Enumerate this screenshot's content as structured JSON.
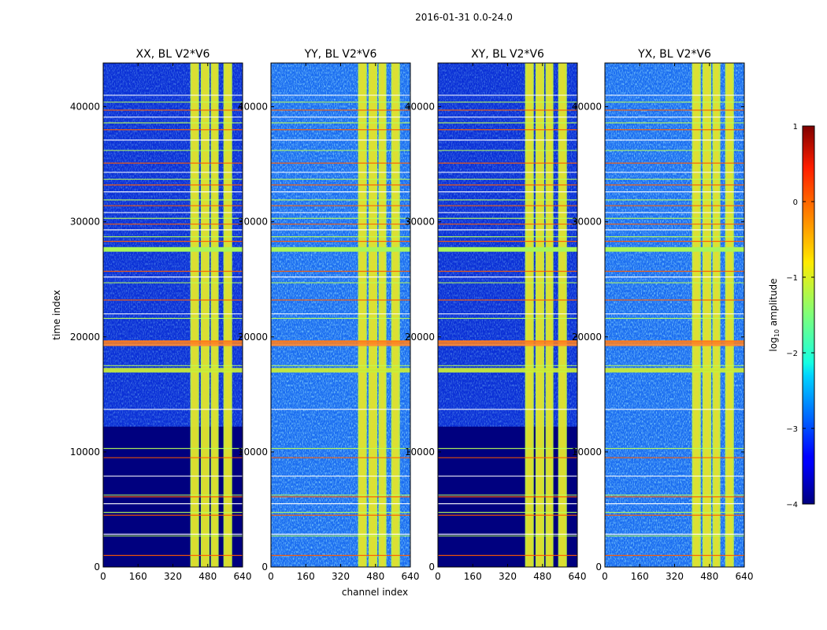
{
  "figure_title": "2016-01-31 0.0-24.0",
  "chart_data": {
    "type": "heatmap",
    "title": "2016-01-31 0.0-24.0",
    "xlabel": "channel index",
    "ylabel": "time index",
    "xlim": [
      0,
      640
    ],
    "ylim": [
      0,
      43800
    ],
    "xticks": [
      0,
      160,
      320,
      480,
      640
    ],
    "yticks": [
      0,
      10000,
      20000,
      30000,
      40000
    ],
    "panels": [
      {
        "title": "XX, BL V2*V6",
        "pol": "XX"
      },
      {
        "title": "YY, BL V2*V6",
        "pol": "YY"
      },
      {
        "title": "XY, BL V2*V6",
        "pol": "XY"
      },
      {
        "title": "YX, BL V2*V6",
        "pol": "YX"
      }
    ],
    "colorbar": {
      "label": "log10 amplitude",
      "label_base": "log",
      "label_sub": "10",
      "label_rest": " amplitude",
      "range": [
        -4,
        1
      ],
      "ticks": [
        1,
        0,
        -1,
        -2,
        -3,
        -4
      ],
      "tick_labels": [
        "1",
        "0",
        "−1",
        "−2",
        "−3",
        "−4"
      ],
      "colormap": "jet"
    },
    "bright_channel_bands": [
      [
        400,
        440
      ],
      [
        448,
        488
      ],
      [
        494,
        530
      ],
      [
        552,
        592
      ]
    ],
    "flagged_time_index": [
      1000,
      2700,
      2850,
      4500,
      4750,
      5500,
      6100,
      6250,
      7900,
      9500,
      10300,
      13700,
      17100,
      17500,
      19300,
      19600,
      21600,
      22000,
      23200,
      24700,
      25200,
      25700,
      27500,
      27700,
      28300,
      28700,
      29300,
      29800,
      30300,
      30800,
      31400,
      31900,
      32600,
      33200,
      33700,
      34300,
      35100,
      36200,
      37100,
      38000,
      38600,
      39100,
      39700,
      40400,
      41000
    ],
    "low_signal_block_time_index": [
      0,
      12200
    ]
  }
}
